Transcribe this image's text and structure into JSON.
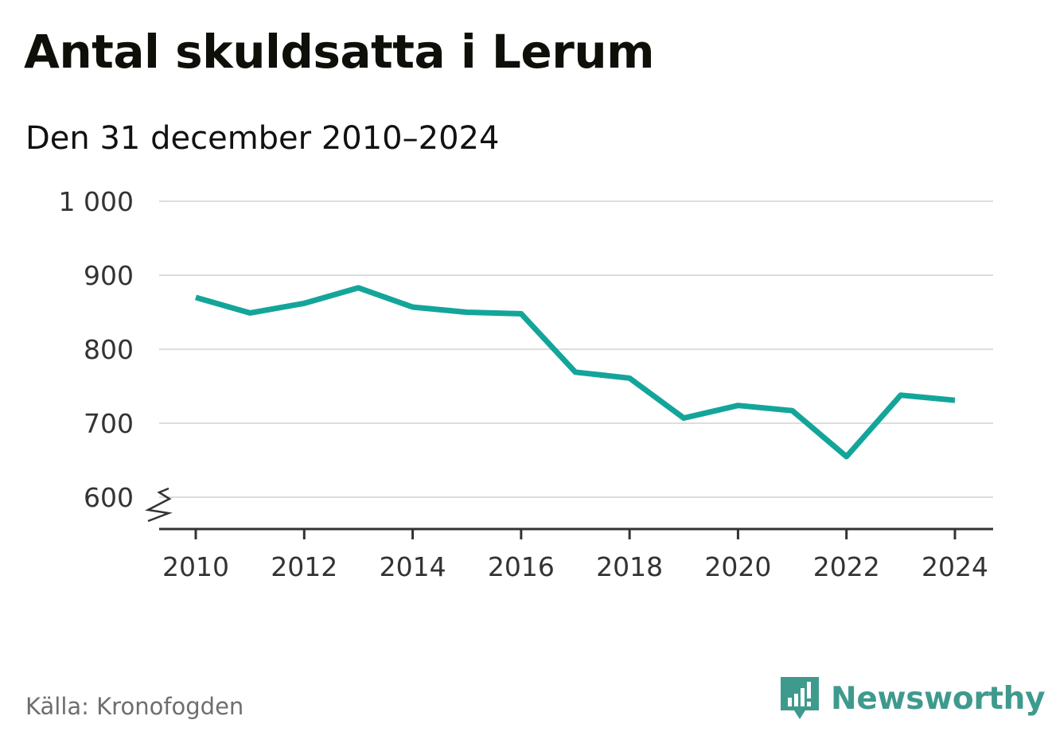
{
  "title": "Antal skuldsatta i Lerum",
  "subtitle": "Den 31 december 2010–2024",
  "source": "Källa: Kronofogden",
  "brand": "Newsworthy",
  "colors": {
    "line": "#14a59a",
    "grid": "#dddddd",
    "axis": "#333333",
    "brand": "#3f9a8e"
  },
  "icons": {
    "brand_logo": "bar-chart-speech-bubble-icon",
    "axis_break": "zigzag-axis-break-icon"
  },
  "chart_data": {
    "type": "line",
    "title": "Antal skuldsatta i Lerum",
    "subtitle": "Den 31 december 2010–2024",
    "x": [
      2010,
      2011,
      2012,
      2013,
      2014,
      2015,
      2016,
      2017,
      2018,
      2019,
      2020,
      2021,
      2022,
      2023,
      2024
    ],
    "series": [
      {
        "values": [
          870,
          849,
          862,
          883,
          857,
          850,
          848,
          769,
          761,
          707,
          724,
          717,
          655,
          738,
          731
        ]
      }
    ],
    "xticks": [
      2010,
      2012,
      2014,
      2016,
      2018,
      2020,
      2022,
      2024
    ],
    "xtick_labels": [
      "2010",
      "2012",
      "2014",
      "2016",
      "2018",
      "2020",
      "2022",
      "2024"
    ],
    "yticks": [
      600,
      700,
      800,
      900,
      1000
    ],
    "ytick_labels": [
      "600",
      "700",
      "800",
      "900",
      "1 000"
    ],
    "ylim": [
      600,
      1000
    ],
    "xlim": [
      2010,
      2024
    ],
    "grid": "horizontal",
    "axis_break": true,
    "legend": "none"
  }
}
